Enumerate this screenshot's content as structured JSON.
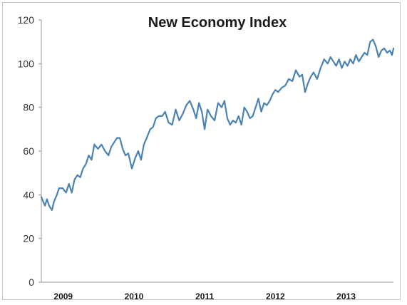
{
  "chart_data": {
    "type": "line",
    "title": "New Economy Index",
    "xlabel": "",
    "ylabel": "",
    "ylim": [
      0,
      120
    ],
    "yticks": [
      "0",
      "20",
      "40",
      "60",
      "80",
      "100",
      "120"
    ],
    "xticks": [
      "2009",
      "2010",
      "2011",
      "2012",
      "2013"
    ],
    "xlim": [
      2008.75,
      2013.73
    ],
    "grid": false,
    "legend": "none",
    "line_color": "#4a82b4",
    "series": [
      {
        "x": [
          2008.75,
          2008.8,
          2008.83,
          2008.86,
          2008.9,
          2008.93,
          2008.97,
          2009.0,
          2009.05,
          2009.1,
          2009.14,
          2009.18,
          2009.22,
          2009.26,
          2009.3,
          2009.34,
          2009.38,
          2009.42,
          2009.46,
          2009.5,
          2009.55,
          2009.6,
          2009.65,
          2009.7,
          2009.74,
          2009.78,
          2009.82,
          2009.86,
          2009.9,
          2009.94,
          2009.98,
          2010.03,
          2010.08,
          2010.12,
          2010.16,
          2010.2,
          2010.24,
          2010.29,
          2010.33,
          2010.37,
          2010.41,
          2010.46,
          2010.5,
          2010.55,
          2010.6,
          2010.65,
          2010.7,
          2010.75,
          2010.8,
          2010.85,
          2010.9,
          2010.94,
          2010.98,
          2011.02,
          2011.06,
          2011.1,
          2011.15,
          2011.2,
          2011.25,
          2011.3,
          2011.34,
          2011.38,
          2011.42,
          2011.46,
          2011.5,
          2011.54,
          2011.58,
          2011.62,
          2011.66,
          2011.7,
          2011.74,
          2011.78,
          2011.82,
          2011.86,
          2011.9,
          2011.94,
          2011.98,
          2012.02,
          2012.06,
          2012.1,
          2012.15,
          2012.2,
          2012.25,
          2012.3,
          2012.35,
          2012.4,
          2012.44,
          2012.48,
          2012.52,
          2012.56,
          2012.6,
          2012.65,
          2012.7,
          2012.75,
          2012.8,
          2012.84,
          2012.88,
          2012.92,
          2012.96,
          2013.0,
          2013.04,
          2013.08,
          2013.12,
          2013.16,
          2013.2,
          2013.24,
          2013.28,
          2013.32,
          2013.36,
          2013.4,
          2013.44,
          2013.48,
          2013.52,
          2013.56,
          2013.6,
          2013.64,
          2013.68,
          2013.71,
          2013.73
        ],
        "values": [
          39,
          35,
          38,
          35,
          33,
          37,
          40,
          43,
          43,
          41,
          45,
          41,
          47,
          49,
          48,
          52,
          54,
          58,
          56,
          63,
          61,
          63,
          60,
          58,
          62,
          64,
          66,
          66,
          61,
          58,
          59,
          52,
          57,
          60,
          56,
          63,
          66,
          70,
          71,
          75,
          76,
          76,
          78,
          73,
          72,
          79,
          74,
          77,
          81,
          83,
          79,
          75,
          82,
          78,
          70,
          79,
          76,
          74,
          82,
          80,
          83,
          75,
          72,
          74,
          73,
          76,
          72,
          80,
          78,
          75,
          76,
          80,
          84,
          78,
          82,
          81,
          83,
          86,
          88,
          87,
          89,
          90,
          93,
          92,
          97,
          94,
          95,
          87,
          91,
          94,
          96,
          93,
          98,
          102,
          100,
          103,
          101,
          99,
          102,
          98,
          101,
          99,
          102,
          100,
          104,
          101,
          103,
          105,
          104,
          110,
          111,
          108,
          103,
          106,
          107,
          105,
          106,
          104,
          107
        ]
      }
    ]
  }
}
